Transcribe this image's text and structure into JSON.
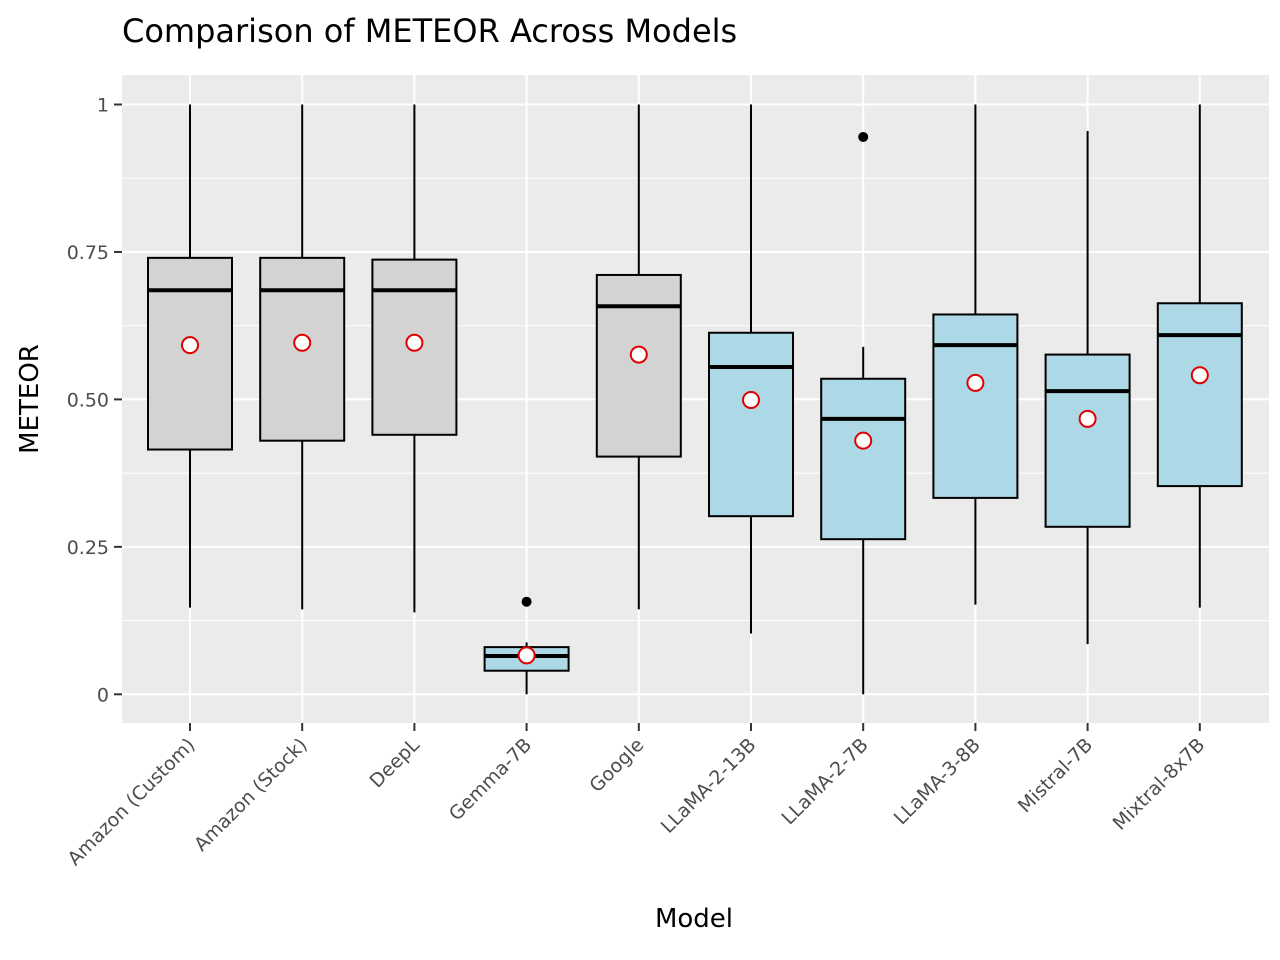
{
  "chart_data": {
    "type": "boxplot",
    "title": "Comparison of METEOR Across Models",
    "xlabel": "Model",
    "ylabel": "METEOR",
    "ylim": [
      -0.05,
      1.05
    ],
    "y_ticks": [
      {
        "value": 0,
        "label": "0"
      },
      {
        "value": 0.25,
        "label": "0.25"
      },
      {
        "value": 0.5,
        "label": "0.50"
      },
      {
        "value": 0.75,
        "label": "0.75"
      },
      {
        "value": 1,
        "label": "1"
      }
    ],
    "grid": true,
    "fill_colors": {
      "gray": "#d3d3d3",
      "blue": "#add8e6"
    },
    "mean_marker": {
      "fill": "#ffffff",
      "stroke": "#e00000"
    },
    "categories": [
      "Amazon (Custom)",
      "Amazon (Stock)",
      "DeepL",
      "Gemma-7B",
      "Google",
      "LLaMA-2-13B",
      "LLaMA-2-7B",
      "LLaMA-3-8B",
      "Mistral-7B",
      "Mixtral-8x7B"
    ],
    "boxes": [
      {
        "min": 0.147,
        "q1": 0.415,
        "median": 0.685,
        "q3": 0.74,
        "max": 1.0,
        "mean": 0.592,
        "fill": "gray",
        "outliers": []
      },
      {
        "min": 0.144,
        "q1": 0.43,
        "median": 0.685,
        "q3": 0.74,
        "max": 1.0,
        "mean": 0.596,
        "fill": "gray",
        "outliers": []
      },
      {
        "min": 0.139,
        "q1": 0.44,
        "median": 0.685,
        "q3": 0.737,
        "max": 1.0,
        "mean": 0.596,
        "fill": "gray",
        "outliers": []
      },
      {
        "min": 0.0,
        "q1": 0.04,
        "median": 0.065,
        "q3": 0.08,
        "max": 0.088,
        "mean": 0.066,
        "fill": "blue",
        "outliers": [
          0.157
        ]
      },
      {
        "min": 0.144,
        "q1": 0.403,
        "median": 0.658,
        "q3": 0.711,
        "max": 1.0,
        "mean": 0.576,
        "fill": "gray",
        "outliers": []
      },
      {
        "min": 0.103,
        "q1": 0.302,
        "median": 0.555,
        "q3": 0.613,
        "max": 1.0,
        "mean": 0.499,
        "fill": "blue",
        "outliers": []
      },
      {
        "min": 0.0,
        "q1": 0.263,
        "median": 0.467,
        "q3": 0.535,
        "max": 0.589,
        "mean": 0.43,
        "fill": "blue",
        "outliers": [
          0.945
        ]
      },
      {
        "min": 0.152,
        "q1": 0.333,
        "median": 0.592,
        "q3": 0.644,
        "max": 1.0,
        "mean": 0.528,
        "fill": "blue",
        "outliers": []
      },
      {
        "min": 0.085,
        "q1": 0.284,
        "median": 0.514,
        "q3": 0.576,
        "max": 0.955,
        "mean": 0.467,
        "fill": "blue",
        "outliers": []
      },
      {
        "min": 0.147,
        "q1": 0.353,
        "median": 0.609,
        "q3": 0.663,
        "max": 1.0,
        "mean": 0.541,
        "fill": "blue",
        "outliers": []
      }
    ]
  }
}
